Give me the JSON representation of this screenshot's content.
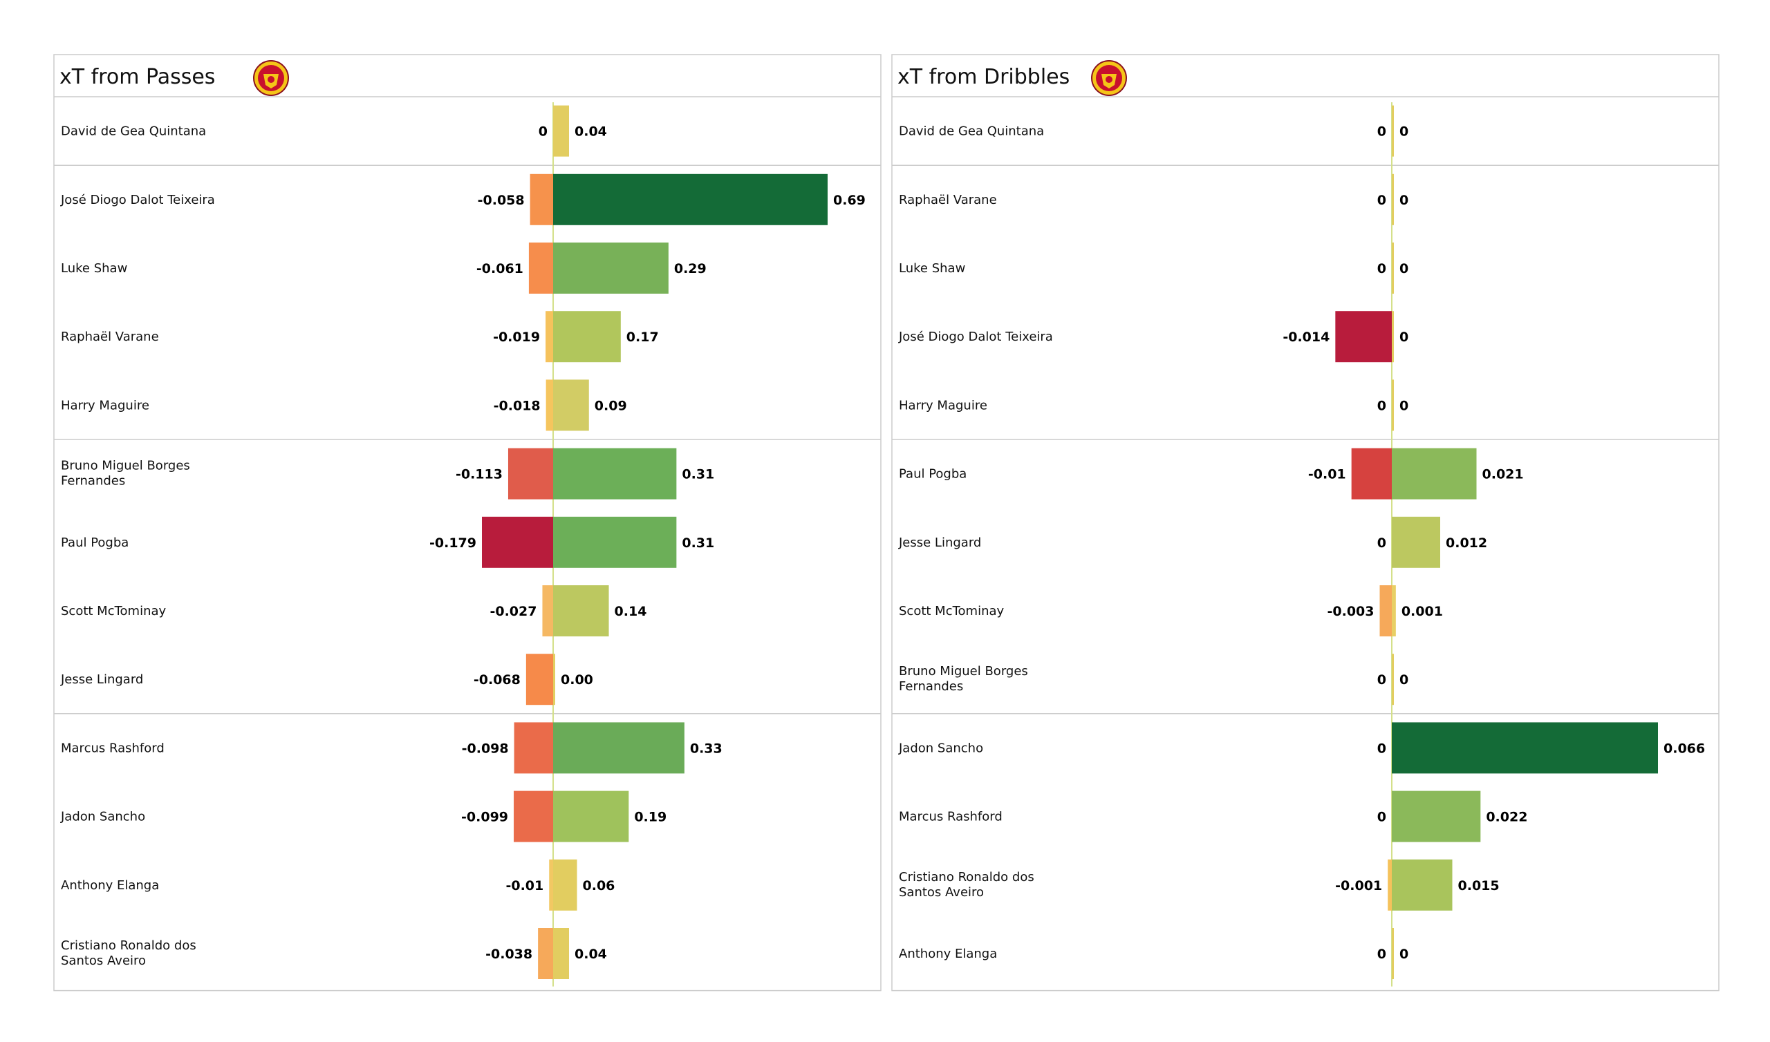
{
  "chart_data": [
    {
      "type": "bar",
      "title": "xT from Passes",
      "logo": "manchester-united-crest",
      "scale_max": 0.69,
      "players": [
        {
          "name": "David de Gea Quintana",
          "neg": 0,
          "pos": 0.04,
          "neg_label": "0",
          "pos_label": "0.04",
          "neg_color": "#ebd76e",
          "pos_color": "#e2cd60"
        },
        {
          "name": "José Diogo Dalot Teixeira",
          "neg": -0.058,
          "pos": 0.69,
          "neg_label": "-0.058",
          "pos_label": "0.69",
          "neg_color": "#f6924c",
          "pos_color": "#146b37"
        },
        {
          "name": "Luke Shaw",
          "neg": -0.061,
          "pos": 0.29,
          "neg_label": "-0.061",
          "pos_label": "0.29",
          "neg_color": "#f68d4c",
          "pos_color": "#78b158"
        },
        {
          "name": "Raphaël Varane",
          "neg": -0.019,
          "pos": 0.17,
          "neg_label": "-0.019",
          "pos_label": "0.17",
          "neg_color": "#f5c25c",
          "pos_color": "#b1c65c"
        },
        {
          "name": "Harry  Maguire",
          "neg": -0.018,
          "pos": 0.09,
          "neg_label": "-0.018",
          "pos_label": "0.09",
          "neg_color": "#f5c55e",
          "pos_color": "#d2cc65"
        },
        {
          "name": "Bruno Miguel Borges Fernandes",
          "neg": -0.113,
          "pos": 0.31,
          "neg_label": "-0.113",
          "pos_label": "0.31",
          "neg_color": "#e05c4b",
          "pos_color": "#6caf58"
        },
        {
          "name": "Paul Pogba",
          "neg": -0.179,
          "pos": 0.31,
          "neg_label": "-0.179",
          "pos_label": "0.31",
          "neg_color": "#b81c3c",
          "pos_color": "#6caf58"
        },
        {
          "name": "Scott McTominay",
          "neg": -0.027,
          "pos": 0.14,
          "neg_label": "-0.027",
          "pos_label": "0.14",
          "neg_color": "#f5b863",
          "pos_color": "#bcc860"
        },
        {
          "name": "Jesse Lingard",
          "neg": -0.068,
          "pos": 0.0,
          "neg_label": "-0.068",
          "pos_label": "0.00",
          "neg_color": "#f68a4a",
          "pos_color": "#e2cd60"
        },
        {
          "name": "Marcus Rashford",
          "neg": -0.098,
          "pos": 0.33,
          "neg_label": "-0.098",
          "pos_label": "0.33",
          "neg_color": "#ea6b4a",
          "pos_color": "#6aab58"
        },
        {
          "name": "Jadon Sancho",
          "neg": -0.099,
          "pos": 0.19,
          "neg_label": "-0.099",
          "pos_label": "0.19",
          "neg_color": "#ea6b4a",
          "pos_color": "#9fc25c"
        },
        {
          "name": "Anthony Elanga",
          "neg": -0.01,
          "pos": 0.06,
          "neg_label": "-0.01",
          "pos_label": "0.06",
          "neg_color": "#f2c863",
          "pos_color": "#e2cd60"
        },
        {
          "name": "Cristiano Ronaldo dos Santos Aveiro",
          "neg": -0.038,
          "pos": 0.04,
          "neg_label": "-0.038",
          "pos_label": "0.04",
          "neg_color": "#f6a95a",
          "pos_color": "#e2cd60"
        }
      ],
      "groups": [
        1,
        4,
        4,
        4
      ]
    },
    {
      "type": "bar",
      "title": "xT from Dribbles",
      "logo": "manchester-united-crest",
      "scale_max": 0.066,
      "players": [
        {
          "name": "David de Gea Quintana",
          "neg": 0,
          "pos": 0,
          "neg_label": "0",
          "pos_label": "0",
          "neg_color": "#ebd76e",
          "pos_color": "#e2cd60"
        },
        {
          "name": "Raphaël Varane",
          "neg": 0,
          "pos": 0,
          "neg_label": "0",
          "pos_label": "0",
          "neg_color": "#ebd76e",
          "pos_color": "#e2cd60"
        },
        {
          "name": "Luke Shaw",
          "neg": 0,
          "pos": 0,
          "neg_label": "0",
          "pos_label": "0",
          "neg_color": "#ebd76e",
          "pos_color": "#e2cd60"
        },
        {
          "name": "José Diogo Dalot Teixeira",
          "neg": -0.014,
          "pos": 0,
          "neg_label": "-0.014",
          "pos_label": "0",
          "neg_color": "#b81c3c",
          "pos_color": "#e2cd60"
        },
        {
          "name": "Harry  Maguire",
          "neg": 0,
          "pos": 0,
          "neg_label": "0",
          "pos_label": "0",
          "neg_color": "#ebd76e",
          "pos_color": "#e2cd60"
        },
        {
          "name": "Paul Pogba",
          "neg": -0.01,
          "pos": 0.021,
          "neg_label": "-0.01",
          "pos_label": "0.021",
          "neg_color": "#d6423f",
          "pos_color": "#8bb95a"
        },
        {
          "name": "Jesse Lingard",
          "neg": 0,
          "pos": 0.012,
          "neg_label": "0",
          "pos_label": "0.012",
          "neg_color": "#ebd76e",
          "pos_color": "#bcc860"
        },
        {
          "name": "Scott McTominay",
          "neg": -0.003,
          "pos": 0.001,
          "neg_label": "-0.003",
          "pos_label": "0.001",
          "neg_color": "#f6a95a",
          "pos_color": "#e8cf65"
        },
        {
          "name": "Bruno Miguel Borges Fernandes",
          "neg": 0,
          "pos": 0,
          "neg_label": "0",
          "pos_label": "0",
          "neg_color": "#ebd76e",
          "pos_color": "#e2cd60"
        },
        {
          "name": "Jadon Sancho",
          "neg": 0,
          "pos": 0.066,
          "neg_label": "0",
          "pos_label": "0.066",
          "neg_color": "#ebd76e",
          "pos_color": "#146b37"
        },
        {
          "name": "Marcus Rashford",
          "neg": 0,
          "pos": 0.022,
          "neg_label": "0",
          "pos_label": "0.022",
          "neg_color": "#ebd76e",
          "pos_color": "#8bb95a"
        },
        {
          "name": "Cristiano Ronaldo dos Santos Aveiro",
          "neg": -0.001,
          "pos": 0.015,
          "neg_label": "-0.001",
          "pos_label": "0.015",
          "neg_color": "#f5c25c",
          "pos_color": "#a9c45c"
        },
        {
          "name": "Anthony Elanga",
          "neg": 0,
          "pos": 0,
          "neg_label": "0",
          "pos_label": "0",
          "neg_color": "#ebd76e",
          "pos_color": "#e2cd60"
        }
      ],
      "groups": [
        1,
        4,
        4,
        4
      ]
    }
  ],
  "colors": {
    "panel_border": "#cccccc",
    "row_divider": "#cccccc",
    "label_text": "#111111",
    "value_text": "#000000",
    "zero_line": "#d4e08a",
    "crest_red": "#c8102e",
    "crest_gold": "#f5c518"
  }
}
